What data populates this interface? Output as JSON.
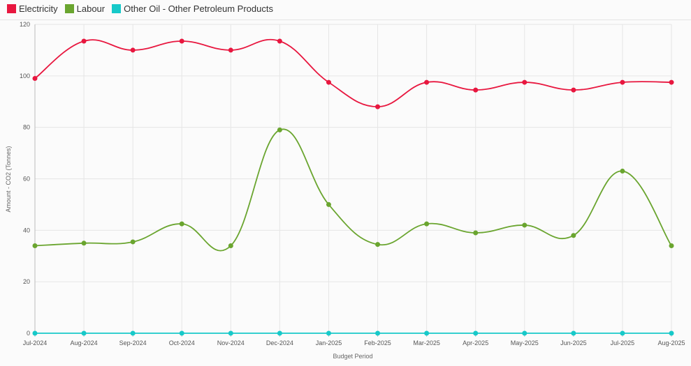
{
  "chart_data": {
    "type": "line",
    "categories": [
      "Jul-2024",
      "Aug-2024",
      "Sep-2024",
      "Oct-2024",
      "Nov-2024",
      "Dec-2024",
      "Jan-2025",
      "Feb-2025",
      "Mar-2025",
      "Apr-2025",
      "May-2025",
      "Jun-2025",
      "Jul-2025",
      "Aug-2025"
    ],
    "series": [
      {
        "name": "Electricity",
        "color": "#e8173f",
        "values": [
          99,
          113.5,
          110,
          113.5,
          110,
          113.5,
          97.5,
          88,
          97.5,
          94.5,
          97.5,
          94.5,
          97.5,
          97.5
        ]
      },
      {
        "name": "Labour",
        "color": "#6aa52f",
        "values": [
          34,
          35,
          35.5,
          42.5,
          34,
          79,
          50,
          34.5,
          42.5,
          39,
          42,
          38,
          63,
          34
        ]
      },
      {
        "name": "Other Oil - Other Petroleum Products",
        "color": "#17c9c9",
        "values": [
          0,
          0,
          0,
          0,
          0,
          0,
          0,
          0,
          0,
          0,
          0,
          0,
          0,
          0
        ]
      }
    ],
    "xlabel": "Budget Period",
    "ylabel": "Amount - CO2 (Tonnes)",
    "ylim": [
      0,
      120
    ],
    "yticks": [
      0,
      20,
      40,
      60,
      80,
      100,
      120
    ],
    "grid": true,
    "legend_position": "top-left"
  }
}
